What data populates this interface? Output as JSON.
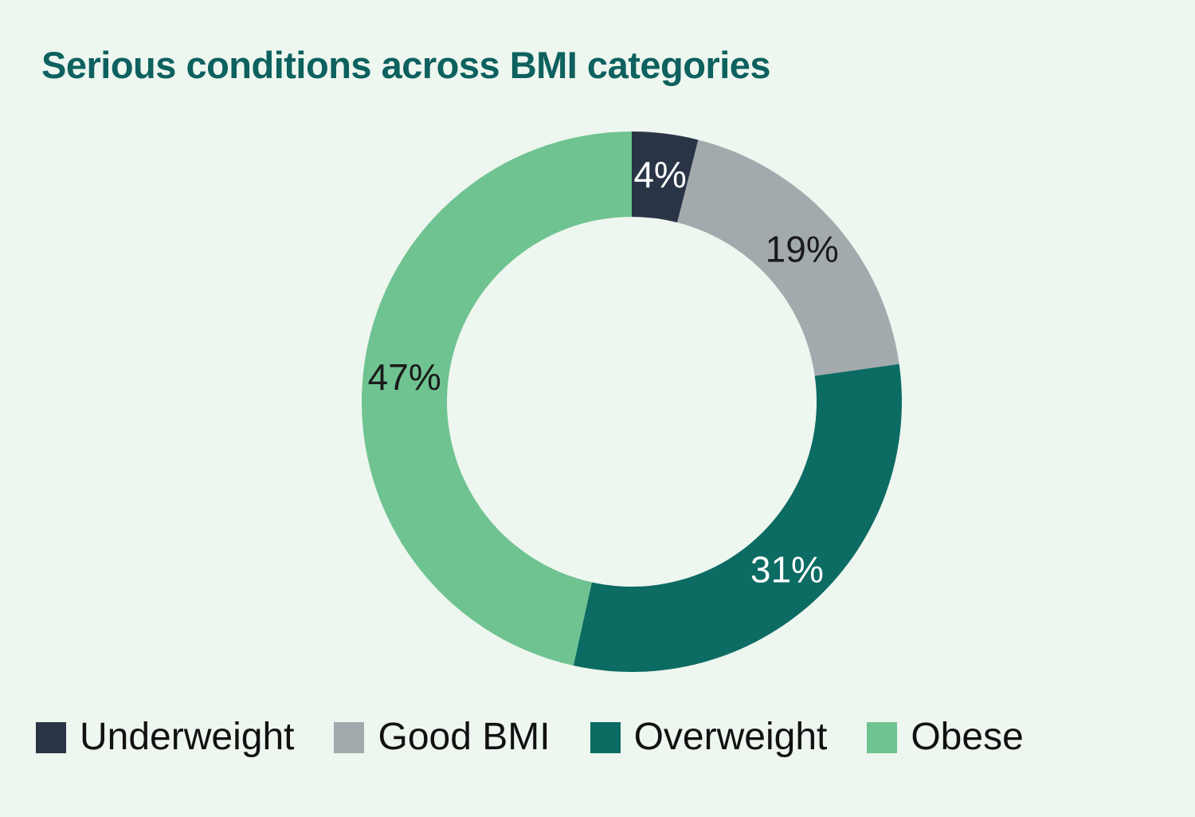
{
  "page": {
    "background_color": "#edf6ef"
  },
  "title": {
    "text": "Serious conditions across BMI categories",
    "color": "#0d615e"
  },
  "legend": {
    "text_color": "#111111"
  },
  "chart_data": {
    "type": "pie",
    "subtype": "donut",
    "title": "Serious conditions across BMI categories",
    "unit": "%",
    "start_angle_deg": 0,
    "direction": "clockwise",
    "legend_position": "bottom",
    "grid": false,
    "slices": [
      {
        "label": "Underweight",
        "value": 4,
        "pct_label": "4%",
        "color": "#2a3447",
        "pct_label_color": "#ffffff"
      },
      {
        "label": "Good BMI",
        "value": 19,
        "pct_label": "19%",
        "color": "#a3aaad",
        "pct_label_color": "#1a1a1a"
      },
      {
        "label": "Overweight",
        "value": 31,
        "pct_label": "31%",
        "color": "#0c6b63",
        "pct_label_color": "#ffffff"
      },
      {
        "label": "Obese",
        "value": 47,
        "pct_label": "47%",
        "color": "#6fc391",
        "pct_label_color": "#1a1a1a"
      }
    ]
  }
}
